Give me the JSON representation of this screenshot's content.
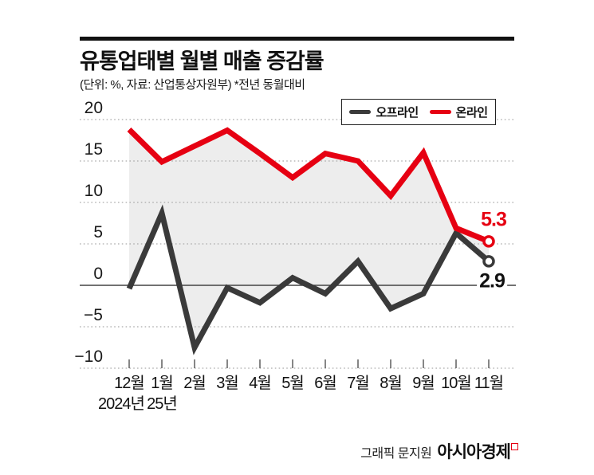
{
  "header": {
    "title": "유통업태별 월별 매출 증감률",
    "subtitle": "(단위: %, 자료: 산업통상자원부)  *전년 동월대비"
  },
  "legend": {
    "items": [
      {
        "label": "오프라인",
        "color": "#3a3a3a"
      },
      {
        "label": "온라인",
        "color": "#e60012"
      }
    ]
  },
  "chart_data": {
    "type": "line",
    "title": "유통업태별 월별 매출 증감률",
    "unit": "%",
    "source": "산업통상자원부",
    "note": "전년 동월대비",
    "categories": [
      "12월",
      "1월",
      "2월",
      "3월",
      "4월",
      "5월",
      "6월",
      "7월",
      "8월",
      "9월",
      "10월",
      "11월"
    ],
    "year_labels": [
      {
        "text": "2024년",
        "month_index": 0
      },
      {
        "text": "25년",
        "month_index": 1
      }
    ],
    "series": [
      {
        "name": "오프라인",
        "color": "#3a3a3a",
        "values": [
          -0.4,
          8.7,
          -7.5,
          -0.3,
          -2.1,
          0.9,
          -1.0,
          2.9,
          -2.8,
          -1.0,
          6.3,
          2.9
        ],
        "end_label": "2.9",
        "end_label_color": "#111111"
      },
      {
        "name": "온라인",
        "color": "#e60012",
        "values": [
          18.8,
          14.9,
          16.8,
          18.7,
          15.9,
          13.0,
          15.9,
          15.0,
          10.8,
          16.0,
          6.9,
          5.3
        ],
        "end_label": "5.3",
        "end_label_color": "#e60012"
      }
    ],
    "y_ticks": [
      20,
      15,
      10,
      5,
      0,
      -5,
      -10
    ],
    "ylim": [
      -12,
      21
    ],
    "grid": "dotted horizontal, solid zero line",
    "legend_position": "top-right inside",
    "fill_between_color": "#ededed",
    "grid_color": "#aaaaaa",
    "axis_color": "#444444"
  },
  "footer": {
    "credit": "그래픽 문지원",
    "brand": "아시아경제"
  }
}
